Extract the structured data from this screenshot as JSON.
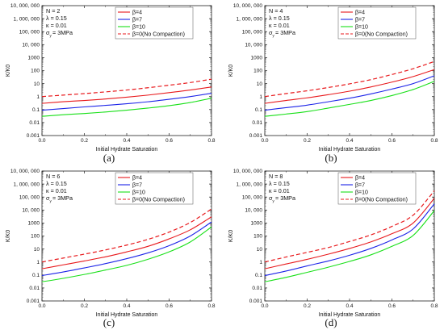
{
  "figure": {
    "panels": [
      {
        "caption": "(a)",
        "params": [
          "N = 2",
          "λ = 0.15",
          "κ = 0.01",
          "σ",
          "y",
          "= 3MPa"
        ],
        "xlabel": "Initial Hydrate Saturation",
        "ylabel": "K/K0",
        "legend": [
          "β=4",
          "β=7",
          "β=10",
          "β=0(No Compaction)"
        ]
      },
      {
        "caption": "(b)",
        "params": [
          "N = 4",
          "λ = 0.15",
          "κ = 0.01",
          "σ",
          "y",
          "= 3MPa"
        ],
        "xlabel": "Initial Hydrate Saturation",
        "ylabel": "K/K0",
        "legend": [
          "β=4",
          "β=7",
          "β=10",
          "β=0(No Compaction)"
        ]
      },
      {
        "caption": "(c)",
        "params": [
          "N = 6",
          "λ = 0.15",
          "κ = 0.01",
          "σ",
          "y",
          "= 3MPa"
        ],
        "xlabel": "Initial Hydrate Saturation",
        "ylabel": "K/K0",
        "legend": [
          "β=4",
          "β=7",
          "β=10",
          "β=0(No Compaction)"
        ]
      },
      {
        "caption": "(d)",
        "params": [
          "N = 8",
          "λ = 0.15",
          "κ = 0.01",
          "σ",
          "y",
          "= 3MPa"
        ],
        "xlabel": "Initial Hydrate Saturation",
        "ylabel": "K/K0",
        "legend": [
          "β=4",
          "β=7",
          "β=10",
          "β=0(No Compaction)"
        ]
      }
    ]
  },
  "colors": {
    "beta4": "#e8191c",
    "beta7": "#1c24e8",
    "beta10": "#18e018",
    "beta0": "#e8191c",
    "axis": "#222222"
  },
  "chart_data": [
    {
      "type": "line",
      "xlim": [
        0.0,
        0.8
      ],
      "ylim": [
        0.001,
        10000000
      ],
      "yscale": "log",
      "xticks": [
        "0.0",
        "0.2",
        "0.4",
        "0.6",
        "0.8"
      ],
      "yticks": [
        "0.001",
        "0.01",
        "0.1",
        "1",
        "10",
        "100",
        "1000",
        "10, 000",
        "100, 000",
        "1, 000, 000",
        "10, 000, 000"
      ],
      "x": [
        0.0,
        0.1,
        0.2,
        0.3,
        0.4,
        0.5,
        0.6,
        0.7,
        0.8
      ],
      "series": [
        {
          "name": "β=4",
          "values": [
            0.3,
            0.4,
            0.5,
            0.65,
            0.9,
            1.3,
            2.0,
            3.2,
            5.5
          ]
        },
        {
          "name": "β=7",
          "values": [
            0.09,
            0.12,
            0.16,
            0.21,
            0.28,
            0.4,
            0.62,
            1.0,
            1.8
          ]
        },
        {
          "name": "β=10",
          "values": [
            0.03,
            0.04,
            0.05,
            0.065,
            0.09,
            0.13,
            0.2,
            0.35,
            0.75
          ]
        },
        {
          "name": "β=0(No Compaction)",
          "values": [
            1.0,
            1.3,
            1.7,
            2.3,
            3.2,
            4.8,
            7.5,
            12,
            22
          ]
        }
      ]
    },
    {
      "type": "line",
      "xlim": [
        0.0,
        0.8
      ],
      "ylim": [
        0.001,
        10000000
      ],
      "yscale": "log",
      "xticks": [
        "0.0",
        "0.2",
        "0.4",
        "0.6",
        "0.8"
      ],
      "yticks": [
        "0.001",
        "0.01",
        "0.1",
        "1",
        "10",
        "100",
        "1000",
        "10, 000",
        "100, 000",
        "1, 000, 000",
        "10, 000, 000"
      ],
      "x": [
        0.0,
        0.1,
        0.2,
        0.3,
        0.4,
        0.5,
        0.6,
        0.7,
        0.8
      ],
      "series": [
        {
          "name": "β=4",
          "values": [
            0.3,
            0.5,
            0.8,
            1.4,
            2.6,
            5.5,
            13,
            35,
            120
          ]
        },
        {
          "name": "β=7",
          "values": [
            0.09,
            0.14,
            0.22,
            0.4,
            0.75,
            1.6,
            3.8,
            10,
            40
          ]
        },
        {
          "name": "β=10",
          "values": [
            0.03,
            0.045,
            0.07,
            0.13,
            0.25,
            0.5,
            1.2,
            3.5,
            15
          ]
        },
        {
          "name": "β=0(No Compaction)",
          "values": [
            1.0,
            1.7,
            2.8,
            5,
            9.5,
            20,
            50,
            140,
            500
          ]
        }
      ]
    },
    {
      "type": "line",
      "xlim": [
        0.0,
        0.8
      ],
      "ylim": [
        0.001,
        10000000
      ],
      "yscale": "log",
      "xticks": [
        "0.0",
        "0.2",
        "0.4",
        "0.6",
        "0.8"
      ],
      "yticks": [
        "0.001",
        "0.01",
        "0.1",
        "1",
        "10",
        "100",
        "1000",
        "10, 000",
        "100, 000",
        "1, 000, 000",
        "10, 000, 000"
      ],
      "x": [
        0.0,
        0.1,
        0.2,
        0.3,
        0.4,
        0.5,
        0.6,
        0.7,
        0.8
      ],
      "series": [
        {
          "name": "β=4",
          "values": [
            0.3,
            0.6,
            1.2,
            2.5,
            6,
            16,
            60,
            300,
            3000
          ]
        },
        {
          "name": "β=7",
          "values": [
            0.09,
            0.17,
            0.35,
            0.75,
            1.8,
            5,
            18,
            100,
            1200
          ]
        },
        {
          "name": "β=10",
          "values": [
            0.03,
            0.055,
            0.11,
            0.24,
            0.55,
            1.6,
            6,
            35,
            500
          ]
        },
        {
          "name": "β=0(No Compaction)",
          "values": [
            1.0,
            2,
            4,
            8.5,
            20,
            55,
            200,
            1100,
            12000
          ]
        }
      ]
    },
    {
      "type": "line",
      "xlim": [
        0.0,
        0.8
      ],
      "ylim": [
        0.001,
        10000000
      ],
      "yscale": "log",
      "xticks": [
        "0.0",
        "0.2",
        "0.4",
        "0.6",
        "0.8"
      ],
      "yticks": [
        "0.001",
        "0.01",
        "0.1",
        "1",
        "10",
        "100",
        "1000",
        "10, 000",
        "100, 000",
        "1, 000, 000",
        "10, 000, 000"
      ],
      "x": [
        0.0,
        0.1,
        0.2,
        0.3,
        0.4,
        0.5,
        0.6,
        0.7,
        0.8
      ],
      "series": [
        {
          "name": "β=4",
          "values": [
            0.3,
            0.7,
            1.6,
            4,
            11,
            35,
            150,
            1000,
            80000
          ]
        },
        {
          "name": "β=7",
          "values": [
            0.09,
            0.2,
            0.5,
            1.2,
            3.3,
            11,
            50,
            350,
            30000
          ]
        },
        {
          "name": "β=10",
          "values": [
            0.03,
            0.065,
            0.16,
            0.4,
            1.1,
            3.5,
            16,
            110,
            9000
          ]
        },
        {
          "name": "β=0(No Compaction)",
          "values": [
            1.0,
            2.4,
            5.5,
            13,
            38,
            120,
            550,
            4000,
            300000
          ]
        }
      ]
    }
  ]
}
